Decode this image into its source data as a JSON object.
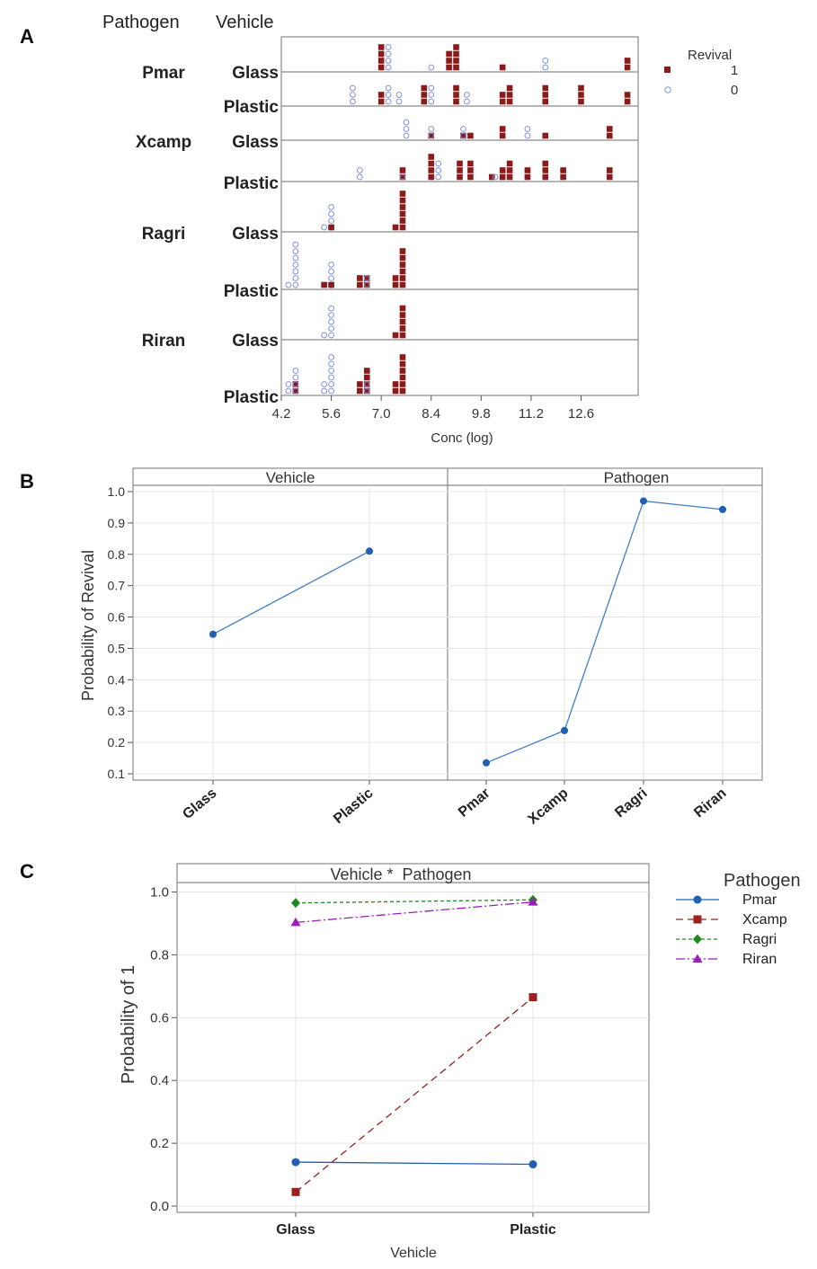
{
  "panels": {
    "A": {
      "letter": "A",
      "headers": {
        "pathogen": "Pathogen",
        "vehicle": "Vehicle"
      },
      "pathogens": [
        "Pmar",
        "Xcamp",
        "Ragri",
        "Riran"
      ],
      "vehicles": [
        "Glass",
        "Plastic"
      ],
      "xlabel": "Conc (log)",
      "xticks": [
        "4.2",
        "5.6",
        "7.0",
        "8.4",
        "9.8",
        "11.2",
        "12.6"
      ],
      "legend": {
        "title": "Revival",
        "items": [
          {
            "label": "1",
            "color": "#8b1a1a"
          },
          {
            "label": "0",
            "color": "#7f8fe0"
          }
        ]
      }
    },
    "B": {
      "letter": "B",
      "ylabel": "Probability of Revival",
      "yticks": [
        "0.1",
        "0.2",
        "0.3",
        "0.4",
        "0.5",
        "0.6",
        "0.7",
        "0.8",
        "0.9",
        "1.0"
      ],
      "left_strip": "Vehicle",
      "right_strip": "Pathogen",
      "left_categories": [
        "Glass",
        "Plastic"
      ],
      "right_categories": [
        "Pmar",
        "Xcamp",
        "Ragri",
        "Riran"
      ]
    },
    "C": {
      "letter": "C",
      "strip": "Vehicle *  Pathogen",
      "ylabel": "Probability of 1",
      "xlabel": "Vehicle",
      "yticks": [
        "0.0",
        "0.2",
        "0.4",
        "0.6",
        "0.8",
        "1.0"
      ],
      "categories": [
        "Glass",
        "Plastic"
      ],
      "legend_title": "Pathogen"
    }
  },
  "chart_data": [
    {
      "type": "scatter",
      "panel": "A",
      "xlabel": "Conc (log)",
      "xlim": [
        4.2,
        14.2
      ],
      "groups": [
        {
          "pathogen": "Pmar",
          "vehicle": "Glass",
          "points": [
            {
              "x": 7.0,
              "revival": 1,
              "count": 4
            },
            {
              "x": 7.2,
              "revival": 0,
              "count": 4
            },
            {
              "x": 8.4,
              "revival": 0,
              "count": 1
            },
            {
              "x": 8.9,
              "revival": 1,
              "count": 3
            },
            {
              "x": 9.1,
              "revival": 1,
              "count": 4
            },
            {
              "x": 10.4,
              "revival": 1,
              "count": 1
            },
            {
              "x": 11.6,
              "revival": 0,
              "count": 2
            },
            {
              "x": 13.9,
              "revival": 1,
              "count": 2
            }
          ]
        },
        {
          "pathogen": "Pmar",
          "vehicle": "Plastic",
          "points": [
            {
              "x": 6.2,
              "revival": 0,
              "count": 3
            },
            {
              "x": 7.0,
              "revival": 1,
              "count": 2
            },
            {
              "x": 7.2,
              "revival": 0,
              "count": 3
            },
            {
              "x": 7.5,
              "revival": 0,
              "count": 2
            },
            {
              "x": 8.2,
              "revival": 1,
              "count": 3
            },
            {
              "x": 8.4,
              "revival": 0,
              "count": 3
            },
            {
              "x": 9.1,
              "revival": 1,
              "count": 3
            },
            {
              "x": 9.4,
              "revival": 0,
              "count": 2
            },
            {
              "x": 10.4,
              "revival": 1,
              "count": 2
            },
            {
              "x": 10.6,
              "revival": 1,
              "count": 3
            },
            {
              "x": 11.6,
              "revival": 1,
              "count": 3
            },
            {
              "x": 12.6,
              "revival": 1,
              "count": 3
            },
            {
              "x": 13.9,
              "revival": 1,
              "count": 2
            }
          ]
        },
        {
          "pathogen": "Xcamp",
          "vehicle": "Glass",
          "points": [
            {
              "x": 7.7,
              "revival": 0,
              "count": 3
            },
            {
              "x": 8.4,
              "revival": 1,
              "count": 1
            },
            {
              "x": 8.4,
              "revival": 0,
              "count": 2
            },
            {
              "x": 9.3,
              "revival": 1,
              "count": 1
            },
            {
              "x": 9.3,
              "revival": 0,
              "count": 2
            },
            {
              "x": 9.5,
              "revival": 1,
              "count": 1
            },
            {
              "x": 10.4,
              "revival": 1,
              "count": 2
            },
            {
              "x": 11.1,
              "revival": 0,
              "count": 2
            },
            {
              "x": 11.6,
              "revival": 1,
              "count": 1
            },
            {
              "x": 13.4,
              "revival": 1,
              "count": 2
            }
          ]
        },
        {
          "pathogen": "Xcamp",
          "vehicle": "Plastic",
          "points": [
            {
              "x": 6.4,
              "revival": 0,
              "count": 2
            },
            {
              "x": 7.6,
              "revival": 1,
              "count": 2
            },
            {
              "x": 7.6,
              "revival": 0,
              "count": 1
            },
            {
              "x": 8.4,
              "revival": 1,
              "count": 4
            },
            {
              "x": 8.6,
              "revival": 0,
              "count": 3
            },
            {
              "x": 9.2,
              "revival": 1,
              "count": 3
            },
            {
              "x": 9.5,
              "revival": 1,
              "count": 3
            },
            {
              "x": 10.1,
              "revival": 1,
              "count": 1
            },
            {
              "x": 10.2,
              "revival": 0,
              "count": 1
            },
            {
              "x": 10.4,
              "revival": 1,
              "count": 2
            },
            {
              "x": 10.6,
              "revival": 1,
              "count": 3
            },
            {
              "x": 11.1,
              "revival": 1,
              "count": 2
            },
            {
              "x": 11.6,
              "revival": 1,
              "count": 3
            },
            {
              "x": 12.1,
              "revival": 1,
              "count": 2
            },
            {
              "x": 13.4,
              "revival": 1,
              "count": 2
            }
          ]
        },
        {
          "pathogen": "Ragri",
          "vehicle": "Glass",
          "points": [
            {
              "x": 5.4,
              "revival": 0,
              "count": 1
            },
            {
              "x": 5.6,
              "revival": 0,
              "count": 4
            },
            {
              "x": 5.6,
              "revival": 1,
              "count": 1
            },
            {
              "x": 7.6,
              "revival": 1,
              "count": 6
            },
            {
              "x": 7.4,
              "revival": 1,
              "count": 1
            }
          ]
        },
        {
          "pathogen": "Ragri",
          "vehicle": "Plastic",
          "points": [
            {
              "x": 4.4,
              "revival": 0,
              "count": 1
            },
            {
              "x": 4.6,
              "revival": 0,
              "count": 7
            },
            {
              "x": 5.4,
              "revival": 1,
              "count": 1
            },
            {
              "x": 5.6,
              "revival": 0,
              "count": 4
            },
            {
              "x": 5.6,
              "revival": 1,
              "count": 1
            },
            {
              "x": 6.4,
              "revival": 1,
              "count": 2
            },
            {
              "x": 6.6,
              "revival": 1,
              "count": 2
            },
            {
              "x": 6.6,
              "revival": 0,
              "count": 2
            },
            {
              "x": 7.4,
              "revival": 1,
              "count": 2
            },
            {
              "x": 7.6,
              "revival": 1,
              "count": 6
            }
          ]
        },
        {
          "pathogen": "Riran",
          "vehicle": "Glass",
          "points": [
            {
              "x": 5.4,
              "revival": 0,
              "count": 1
            },
            {
              "x": 5.6,
              "revival": 0,
              "count": 5
            },
            {
              "x": 7.4,
              "revival": 1,
              "count": 1
            },
            {
              "x": 7.6,
              "revival": 1,
              "count": 5
            }
          ]
        },
        {
          "pathogen": "Riran",
          "vehicle": "Plastic",
          "points": [
            {
              "x": 4.4,
              "revival": 0,
              "count": 2
            },
            {
              "x": 4.6,
              "revival": 1,
              "count": 2
            },
            {
              "x": 4.6,
              "revival": 0,
              "count": 4
            },
            {
              "x": 5.4,
              "revival": 0,
              "count": 2
            },
            {
              "x": 5.6,
              "revival": 0,
              "count": 6
            },
            {
              "x": 6.4,
              "revival": 1,
              "count": 2
            },
            {
              "x": 6.6,
              "revival": 1,
              "count": 4
            },
            {
              "x": 6.6,
              "revival": 0,
              "count": 2
            },
            {
              "x": 7.4,
              "revival": 1,
              "count": 2
            },
            {
              "x": 7.6,
              "revival": 1,
              "count": 6
            }
          ]
        }
      ]
    },
    {
      "type": "line",
      "panel": "B-left",
      "strip": "Vehicle",
      "categories": [
        "Glass",
        "Plastic"
      ],
      "values": [
        0.545,
        0.81
      ],
      "ylabel": "Probability of Revival",
      "ylim": [
        0.08,
        1.02
      ],
      "color": "#3f7fc4"
    },
    {
      "type": "line",
      "panel": "B-right",
      "strip": "Pathogen",
      "categories": [
        "Pmar",
        "Xcamp",
        "Ragri",
        "Riran"
      ],
      "values": [
        0.135,
        0.238,
        0.97,
        0.943
      ],
      "ylim": [
        0.08,
        1.02
      ],
      "color": "#3f7fc4"
    },
    {
      "type": "line",
      "panel": "C",
      "strip": "Vehicle *  Pathogen",
      "categories": [
        "Glass",
        "Plastic"
      ],
      "xlabel": "Vehicle",
      "ylabel": "Probability of 1",
      "ylim": [
        -0.02,
        1.03
      ],
      "series": [
        {
          "name": "Pmar",
          "values": [
            0.14,
            0.133
          ],
          "color": "#1f5fb4",
          "marker": "circle",
          "dash": "solid"
        },
        {
          "name": "Xcamp",
          "values": [
            0.045,
            0.665
          ],
          "color": "#9b2020",
          "marker": "square",
          "dash": "long"
        },
        {
          "name": "Ragri",
          "values": [
            0.965,
            0.975
          ],
          "color": "#1d8a1d",
          "marker": "diamond",
          "dash": "short"
        },
        {
          "name": "Riran",
          "values": [
            0.903,
            0.968
          ],
          "color": "#9a1fb8",
          "marker": "triangle",
          "dash": "dashdot"
        }
      ]
    }
  ]
}
